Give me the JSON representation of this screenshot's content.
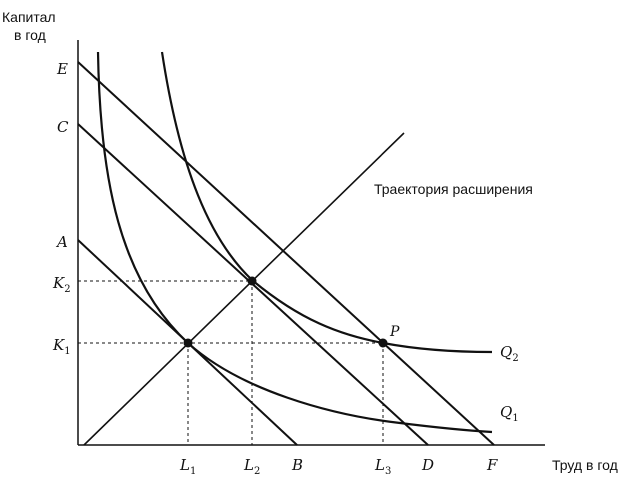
{
  "axis": {
    "y_title_line1": "Капитал",
    "y_title_line2": "в год",
    "x_title": "Труд в год"
  },
  "y_ticks": {
    "E": "E",
    "C": "C",
    "A": "A",
    "K2": "K",
    "K2_sub": "2",
    "K1": "K",
    "K1_sub": "1"
  },
  "x_ticks": {
    "L1": "L",
    "L1_sub": "1",
    "L2": "L",
    "L2_sub": "2",
    "B": "B",
    "L3": "L",
    "L3_sub": "3",
    "D": "D",
    "F": "F"
  },
  "annotations": {
    "expansion_path": "Траектория расширения",
    "P": "P"
  },
  "curves": {
    "Q2": "Q",
    "Q2_sub": "2",
    "Q1": "Q",
    "Q1_sub": "1"
  },
  "colors": {
    "ink": "#111111",
    "background": "#ffffff"
  }
}
